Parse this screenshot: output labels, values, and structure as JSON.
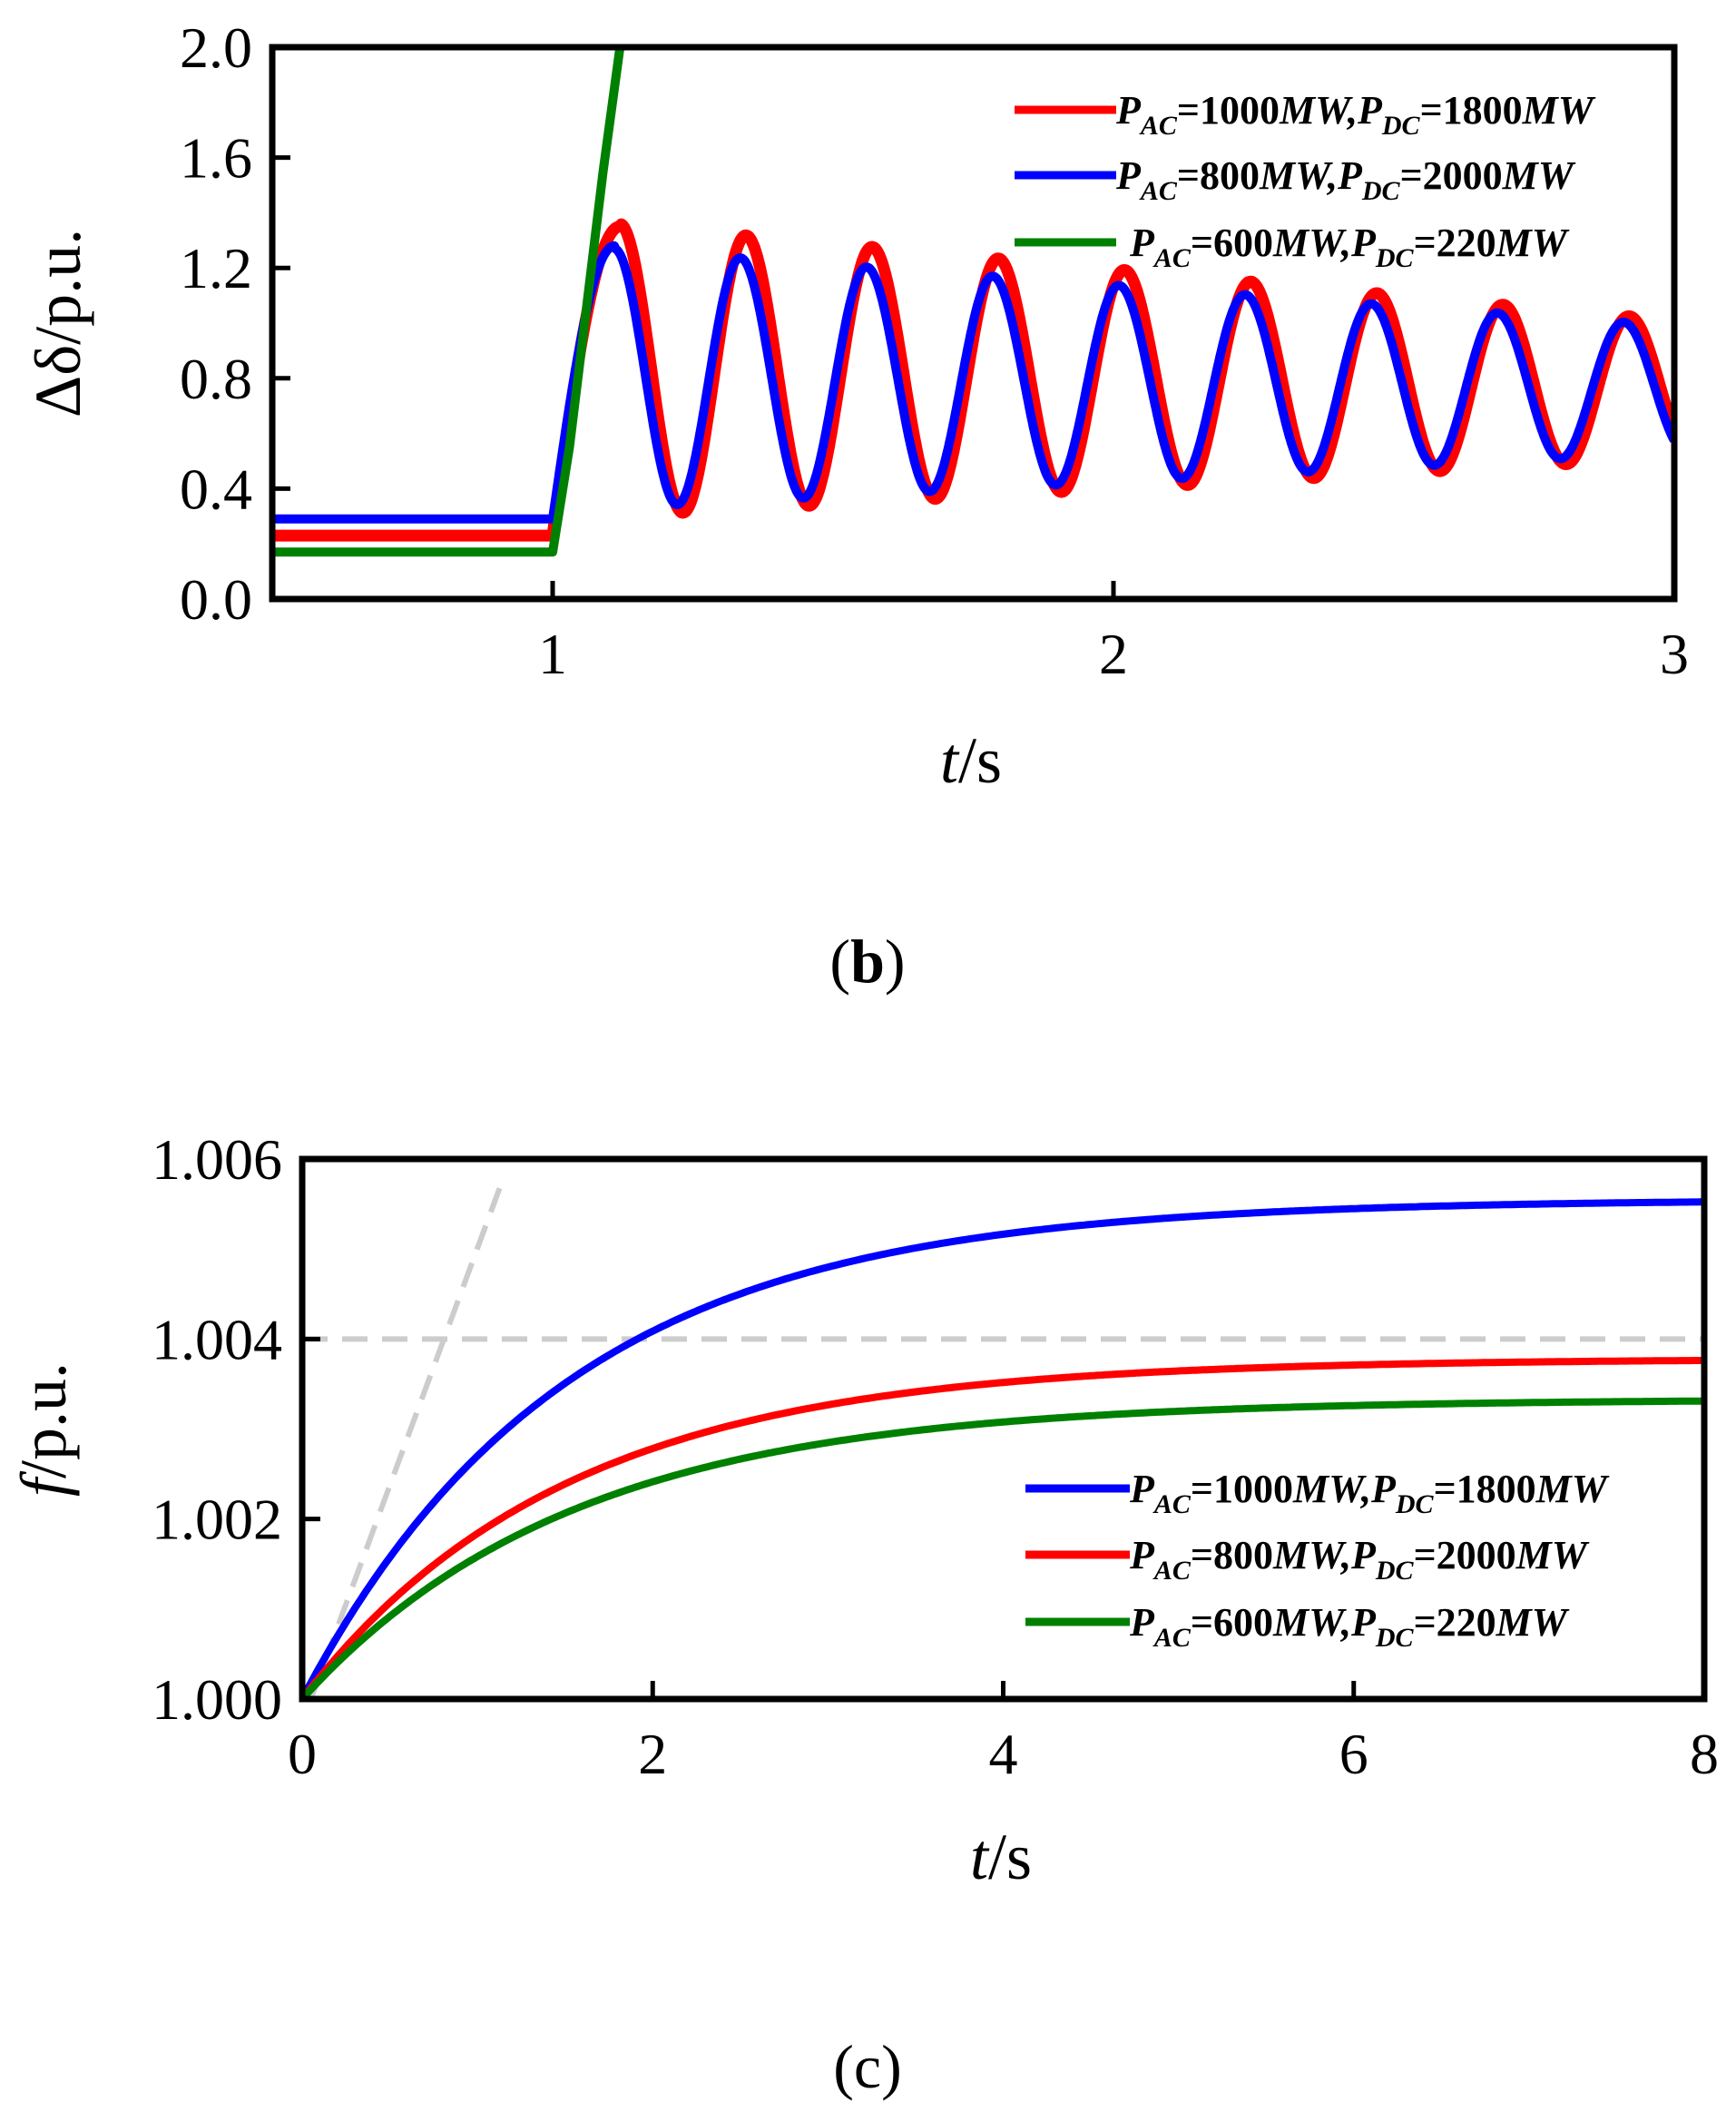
{
  "chart_data": [
    {
      "type": "line",
      "panel_label": "b",
      "xlabel": "t",
      "xlabel_unit": "/s",
      "ylabel": "Δδ/p.u.",
      "xlim": [
        0.5,
        3
      ],
      "ylim": [
        0,
        2
      ],
      "xticks": [
        1,
        2,
        3
      ],
      "yticks": [
        0.0,
        0.4,
        0.8,
        1.2,
        1.6,
        2.0
      ],
      "xtick_labels": [
        "1",
        "2",
        "3"
      ],
      "ytick_labels": [
        "0.0",
        "0.4",
        "0.8",
        "1.2",
        "1.6",
        "2.0"
      ],
      "legend_position": "top-right",
      "series": [
        {
          "name": "PAC=1000MW,PDC=1800MW",
          "legend": {
            "p1": "P",
            "s1": "AC",
            "m": "=1000",
            "u1": "MW",
            "c": ",",
            "p2": "P",
            "s2": "DC",
            "n": "=1800",
            "u2": "MW"
          },
          "color": "#ff0000",
          "model": "oscillation",
          "pre_value": 0.23,
          "t_fault": 1.0,
          "rise_end": 1.12,
          "peak": 1.35,
          "center_start": 0.83,
          "center_end": 0.76,
          "amp_start": 0.53,
          "amp_end": 0.25,
          "period": 0.225,
          "x": [
            0.5,
            1.0,
            1.11,
            1.23,
            1.34,
            1.46,
            1.57,
            1.69,
            1.8,
            1.92,
            2.03,
            2.15,
            2.26,
            2.38,
            2.49,
            2.61,
            2.72,
            2.84,
            2.93,
            3.0
          ],
          "y": [
            0.23,
            0.23,
            1.35,
            0.29,
            1.29,
            0.34,
            1.24,
            0.37,
            1.19,
            0.4,
            1.14,
            0.44,
            1.1,
            0.47,
            1.07,
            0.5,
            1.04,
            0.52,
            1.01,
            0.75
          ]
        },
        {
          "name": "PAC=800MW,PDC=2000MW",
          "legend": {
            "p1": "P",
            "s1": "AC",
            "m": "=800",
            "u1": "MW",
            "c": ",",
            "p2": "P",
            "s2": "DC",
            "n": "=2000",
            "u2": "MW"
          },
          "color": "#0000ff",
          "model": "oscillation",
          "pre_value": 0.29,
          "t_fault": 1.0,
          "rise_end": 1.11,
          "peak": 1.28,
          "center_start": 0.8,
          "center_end": 0.76,
          "amp_start": 0.47,
          "amp_end": 0.23,
          "period": 0.225,
          "x": [
            0.5,
            1.0,
            1.11,
            1.23,
            1.34,
            1.46,
            1.57,
            1.69,
            1.8,
            1.92,
            2.03,
            2.15,
            2.26,
            2.38,
            2.49,
            2.61,
            2.72,
            2.84,
            2.93,
            3.0
          ],
          "y": [
            0.29,
            0.29,
            1.28,
            0.33,
            1.23,
            0.37,
            1.19,
            0.4,
            1.15,
            0.43,
            1.11,
            0.46,
            1.08,
            0.49,
            1.05,
            0.52,
            1.02,
            0.54,
            0.99,
            0.67
          ]
        },
        {
          "name": "PAC=600MW,PDC=220MW",
          "legend": {
            "p1": "P",
            "s1": "AC",
            "m": "=600",
            "u1": "MW",
            "c": ",",
            "p2": "P",
            "s2": "DC",
            "n": "=220",
            "u2": "MW"
          },
          "color": "#008000",
          "model": "polyline",
          "x": [
            0.5,
            1.0,
            1.03,
            1.06,
            1.09,
            1.12
          ],
          "y": [
            0.17,
            0.17,
            0.55,
            1.05,
            1.55,
            2.0
          ]
        }
      ]
    },
    {
      "type": "line",
      "panel_label": "c",
      "xlabel": "t",
      "xlabel_unit": "/s",
      "ylabel_italic": "f",
      "ylabel_rest": "/p.u.",
      "xlim": [
        0,
        8
      ],
      "ylim": [
        1.0,
        1.006
      ],
      "xticks": [
        0,
        2,
        4,
        6,
        8
      ],
      "yticks": [
        1.0,
        1.002,
        1.004,
        1.006
      ],
      "xtick_labels": [
        "0",
        "2",
        "4",
        "6",
        "8"
      ],
      "ytick_labels": [
        "1.000",
        "1.002",
        "1.004",
        "1.006"
      ],
      "legend_position": "center-right",
      "reference_lines": [
        {
          "kind": "horizontal-dashed",
          "y": 1.004,
          "color": "#cccccc"
        },
        {
          "kind": "tangent-dashed",
          "x": [
            0.05,
            1.15
          ],
          "y": [
            1.0,
            1.0058
          ],
          "color": "#cccccc"
        }
      ],
      "series": [
        {
          "name": "PAC=1000MW,PDC=1800MW",
          "legend": {
            "p1": "P",
            "s1": "AC",
            "m": "=1000",
            "u1": "MW",
            "c": ",",
            "p2": "P",
            "s2": "DC",
            "n": "=1800",
            "u2": "MW"
          },
          "color": "#0000ff",
          "model": "exp",
          "f_inf": 1.00555,
          "tau": 1.5,
          "x": [
            0,
            1,
            2,
            3,
            4,
            5,
            6,
            7,
            8
          ],
          "y": [
            1.0,
            1.00271,
            1.00406,
            1.00476,
            1.00516,
            1.00535,
            1.00544,
            1.0055,
            1.00552
          ]
        },
        {
          "name": "PAC=800MW,PDC=2000MW",
          "legend": {
            "p1": "P",
            "s1": "AC",
            "m": "=800",
            "u1": "MW",
            "c": ",",
            "p2": "P",
            "s2": "DC",
            "n": "=2000",
            "u2": "MW"
          },
          "color": "#ff0000",
          "model": "exp",
          "f_inf": 1.00378,
          "tau": 1.5,
          "x": [
            0,
            1,
            2,
            3,
            4,
            5,
            6,
            7,
            8
          ],
          "y": [
            1.0,
            1.00184,
            1.00277,
            1.00324,
            1.0035,
            1.00364,
            1.00371,
            1.00374,
            1.00376
          ]
        },
        {
          "name": "PAC=600MW,PDC=220MW",
          "legend": {
            "p1": "P",
            "s1": "AC",
            "m": "=600",
            "u1": "MW",
            "c": ",",
            "p2": "P",
            "s2": "DC",
            "n": "=220",
            "u2": "MW"
          },
          "color": "#008000",
          "model": "exp",
          "f_inf": 1.00333,
          "tau": 1.55,
          "x": [
            0,
            1,
            2,
            3,
            4,
            5,
            6,
            7,
            8
          ],
          "y": [
            1.0,
            1.00159,
            1.00242,
            1.00285,
            1.00308,
            1.0032,
            1.00326,
            1.00329,
            1.00331
          ]
        }
      ]
    }
  ]
}
